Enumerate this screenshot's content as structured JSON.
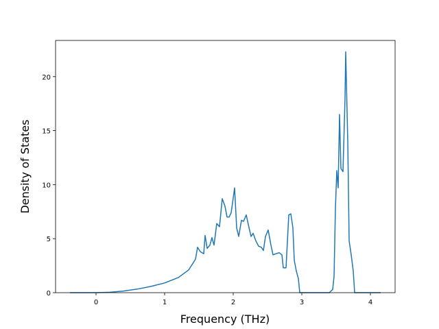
{
  "chart_data": {
    "type": "line",
    "xlabel": "Frequency (THz)",
    "ylabel": "Density of States",
    "x": [
      -0.38,
      0,
      0.2,
      0.4,
      0.6,
      0.8,
      1.0,
      1.2,
      1.35,
      1.45,
      1.48,
      1.52,
      1.57,
      1.59,
      1.62,
      1.66,
      1.69,
      1.72,
      1.76,
      1.8,
      1.84,
      1.88,
      1.91,
      1.94,
      1.97,
      1.99,
      2.02,
      2.05,
      2.08,
      2.12,
      2.15,
      2.19,
      2.22,
      2.26,
      2.29,
      2.33,
      2.37,
      2.41,
      2.44,
      2.47,
      2.51,
      2.55,
      2.58,
      2.62,
      2.67,
      2.71,
      2.73,
      2.77,
      2.81,
      2.84,
      2.87,
      2.89,
      2.92,
      2.95,
      2.97,
      3.4,
      3.45,
      3.47,
      3.49,
      3.51,
      3.53,
      3.55,
      3.57,
      3.6,
      3.63,
      3.64,
      3.67,
      3.69,
      3.72,
      3.75,
      3.77,
      3.79,
      4.15
    ],
    "series": [
      {
        "color": "#1f77b4",
        "values": [
          0,
          0,
          0.04,
          0.15,
          0.33,
          0.58,
          0.9,
          1.4,
          2.1,
          3.1,
          4.2,
          3.8,
          3.6,
          5.3,
          4.1,
          4.4,
          5.1,
          4.4,
          6.4,
          6.1,
          8.7,
          8.0,
          7.0,
          7.0,
          7.4,
          8.3,
          9.7,
          6.0,
          5.2,
          6.7,
          6.6,
          7.2,
          6.3,
          5.2,
          5.5,
          4.8,
          4.3,
          4.2,
          3.9,
          5.2,
          5.8,
          4.4,
          3.5,
          3.6,
          3.7,
          3.5,
          2.3,
          2.3,
          7.2,
          7.3,
          6.0,
          3.0,
          2.0,
          1.3,
          0,
          0,
          0.3,
          1.5,
          7.8,
          11.3,
          9.7,
          16.5,
          11.5,
          11.2,
          18.0,
          22.3,
          14.0,
          4.8,
          3.5,
          2.0,
          0,
          0,
          0
        ]
      }
    ],
    "xlim": [
      -0.59,
      4.36
    ],
    "ylim": [
      0,
      23.35
    ],
    "xticks": [
      0,
      1,
      2,
      3,
      4
    ],
    "yticks": [
      0,
      5,
      10,
      15,
      20
    ],
    "grid": false
  }
}
